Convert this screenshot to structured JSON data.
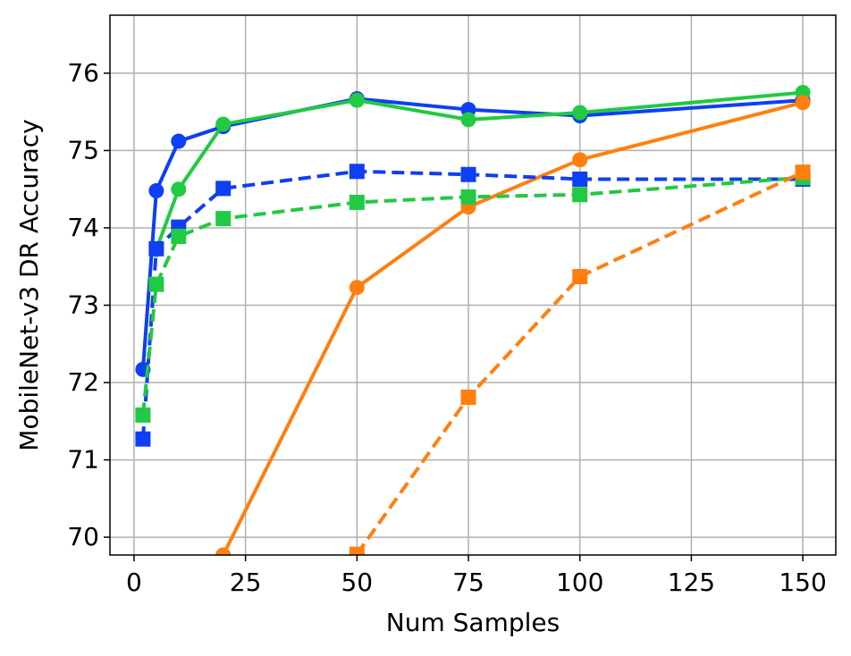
{
  "chart_data": {
    "type": "line",
    "x_label": "Num Samples",
    "y_label": "MobileNet-v3 DR Accuracy",
    "x": [
      2,
      5,
      10,
      20,
      50,
      75,
      100,
      150
    ],
    "xlim": [
      -5.4,
      157.4
    ],
    "xticks": [
      0,
      25,
      50,
      75,
      100,
      125,
      150
    ],
    "ylim": [
      69.77,
      76.75
    ],
    "yticks": [
      70,
      71,
      72,
      73,
      74,
      75,
      76
    ],
    "grid": true,
    "series": [
      {
        "color": "#0f3ff2",
        "marker": "circle",
        "dashed": false,
        "values": [
          72.17,
          74.48,
          75.12,
          75.31,
          75.67,
          75.53,
          75.45,
          75.65
        ]
      },
      {
        "color": "#22c942",
        "marker": "circle",
        "dashed": false,
        "values": [
          null,
          73.72,
          74.5,
          75.34,
          75.65,
          75.4,
          75.49,
          75.75
        ]
      },
      {
        "color": "#ff7f0e",
        "marker": "circle",
        "dashed": false,
        "values": [
          null,
          null,
          null,
          69.77,
          73.23,
          74.27,
          74.88,
          75.62
        ]
      },
      {
        "color": "#0f3ff2",
        "marker": "square",
        "dashed": true,
        "values": [
          71.27,
          73.73,
          74.01,
          74.51,
          74.73,
          74.69,
          74.63,
          74.63
        ]
      },
      {
        "color": "#22c942",
        "marker": "square",
        "dashed": true,
        "values": [
          71.58,
          73.27,
          73.89,
          74.12,
          74.33,
          74.4,
          74.43,
          74.65
        ]
      },
      {
        "color": "#ff7f0e",
        "marker": "square",
        "dashed": true,
        "values": [
          null,
          null,
          null,
          null,
          69.78,
          71.81,
          73.37,
          74.72
        ]
      }
    ]
  }
}
